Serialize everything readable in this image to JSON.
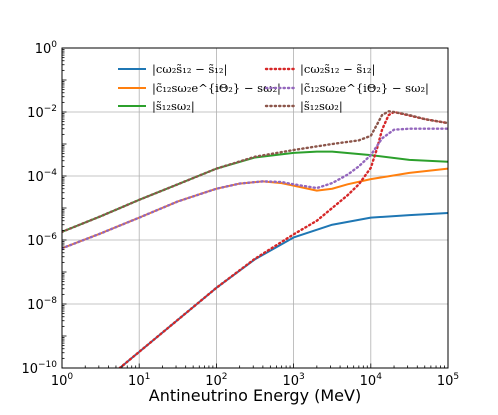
{
  "chart_data": {
    "type": "line",
    "xlabel": "Antineutrino Energy (MeV)",
    "ylabel": "",
    "xscale": "log",
    "yscale": "log",
    "xlim": [
      1,
      100000
    ],
    "ylim": [
      1e-10,
      1
    ],
    "grid": true,
    "legend_placement": "top, two columns",
    "x_ticks": [
      {
        "value": 1,
        "base": "10",
        "exp": "0"
      },
      {
        "value": 10,
        "base": "10",
        "exp": "1"
      },
      {
        "value": 100,
        "base": "10",
        "exp": "2"
      },
      {
        "value": 1000,
        "base": "10",
        "exp": "3"
      },
      {
        "value": 10000,
        "base": "10",
        "exp": "4"
      },
      {
        "value": 100000,
        "base": "10",
        "exp": "5"
      }
    ],
    "y_ticks": [
      {
        "value": 1e-10,
        "base": "10",
        "exp": "−10"
      },
      {
        "value": 1e-08,
        "base": "10",
        "exp": "−8"
      },
      {
        "value": 1e-06,
        "base": "10",
        "exp": "−6"
      },
      {
        "value": 0.0001,
        "base": "10",
        "exp": "−4"
      },
      {
        "value": 0.01,
        "base": "10",
        "exp": "−2"
      },
      {
        "value": 1,
        "base": "10",
        "exp": "0"
      }
    ],
    "series": [
      {
        "name": "|cω₂s̃₁₂ − s̃₁₂|",
        "color": "#1f77b4",
        "style": "solid",
        "x": [
          5.6,
          10,
          31.6,
          100,
          316,
          1000,
          3162,
          10000,
          31623,
          100000
        ],
        "y": [
          1e-10,
          3.2e-10,
          3.2e-09,
          3.2e-08,
          2.5e-07,
          1.2e-06,
          3e-06,
          5e-06,
          6e-06,
          7e-06
        ]
      },
      {
        "name": "|c̃₁₂sω₂e^{iΘ₂} − sω₂|",
        "color": "#ff7f0e",
        "style": "solid",
        "x": [
          1,
          3.16,
          10,
          31.6,
          100,
          200,
          400,
          700,
          1000,
          2000,
          3162,
          5000,
          10000,
          31623,
          100000
        ],
        "y": [
          5.5e-07,
          1.6e-06,
          5e-06,
          1.6e-05,
          4e-05,
          5.8e-05,
          6.8e-05,
          6e-05,
          5e-05,
          3.5e-05,
          4e-05,
          5.5e-05,
          8e-05,
          0.000125,
          0.00017
        ]
      },
      {
        "name": "|s̃₁₂sω₂|",
        "color": "#2ca02c",
        "style": "solid",
        "x": [
          1,
          3.16,
          10,
          31.6,
          100,
          316,
          1000,
          2000,
          3162,
          10000,
          31623,
          100000
        ],
        "y": [
          1.8e-06,
          5.5e-06,
          1.8e-05,
          5.5e-05,
          0.00017,
          0.00038,
          0.00053,
          0.00058,
          0.00058,
          0.00045,
          0.00032,
          0.00028
        ]
      },
      {
        "name": "|cω₂s̃₁₂ − s̃₁₂|",
        "color": "#d62728",
        "style": "dotted",
        "x": [
          5.6,
          10,
          31.6,
          100,
          316,
          1000,
          2000,
          3162,
          5000,
          7000,
          10000,
          12000,
          14000,
          17000,
          20000,
          30000,
          50000,
          100000
        ],
        "y": [
          1e-10,
          3.2e-10,
          3.2e-09,
          3.2e-08,
          2.6e-07,
          1.5e-06,
          4e-06,
          1e-05,
          2.5e-05,
          5.5e-05,
          0.00018,
          0.0007,
          0.0028,
          0.008,
          0.01,
          0.008,
          0.006,
          0.0045
        ]
      },
      {
        "name": "|c̃₁₂sω₂e^{iΘ₂} − sω₂|",
        "color": "#9467bd",
        "style": "dotted",
        "x": [
          1,
          3.16,
          10,
          31.6,
          100,
          200,
          400,
          700,
          1000,
          2000,
          3162,
          5000,
          7000,
          10000,
          14000,
          20000,
          31623,
          100000
        ],
        "y": [
          5.5e-07,
          1.6e-06,
          5e-06,
          1.6e-05,
          4e-05,
          5.8e-05,
          6.8e-05,
          6.5e-05,
          5.5e-05,
          4.2e-05,
          6e-05,
          0.00011,
          0.0002,
          0.00045,
          0.0015,
          0.0028,
          0.003,
          0.003
        ]
      },
      {
        "name": "|s̃₁₂sω₂|",
        "color": "#8c564b",
        "style": "dotted",
        "x": [
          1,
          3.16,
          10,
          31.6,
          100,
          316,
          1000,
          3162,
          7000,
          10000,
          12000,
          14000,
          17000,
          20000,
          31623,
          50000,
          100000
        ],
        "y": [
          1.8e-06,
          5.5e-06,
          1.8e-05,
          5.5e-05,
          0.00017,
          0.0004,
          0.00065,
          0.001,
          0.0013,
          0.0018,
          0.004,
          0.008,
          0.0105,
          0.01,
          0.008,
          0.006,
          0.0045
        ]
      }
    ]
  }
}
